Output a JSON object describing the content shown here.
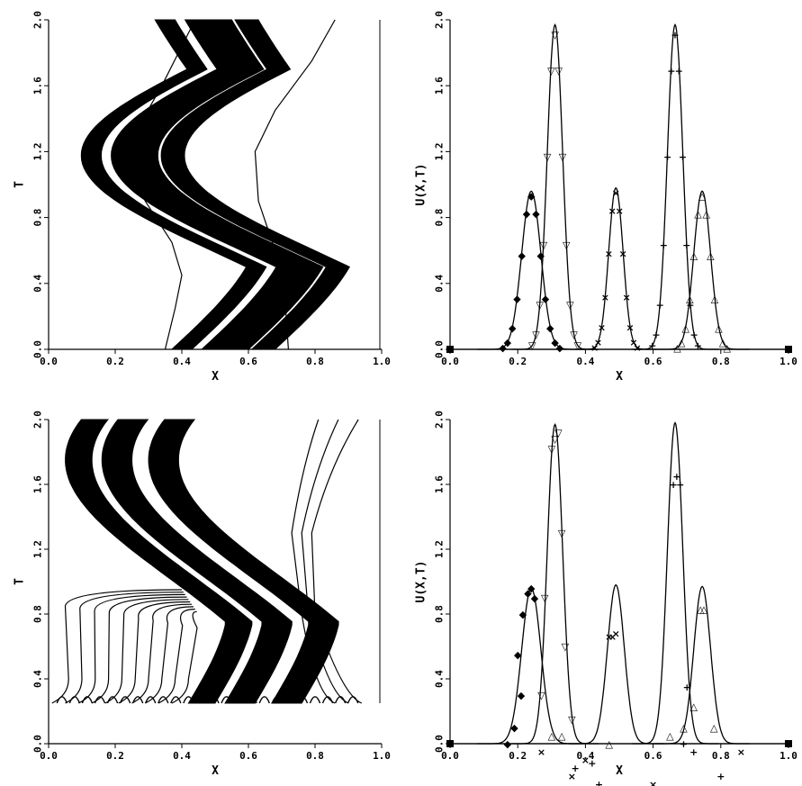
{
  "chart_data": [
    {
      "type": "line",
      "panel": "top-left",
      "xlabel": "X",
      "ylabel": "T",
      "xlim": [
        0.0,
        1.0
      ],
      "ylim": [
        0.0,
        2.0
      ],
      "xticks": [
        "0.0",
        "0.2",
        "0.4",
        "0.6",
        "0.8",
        "1.0"
      ],
      "yticks": [
        "0.0",
        "0.4",
        "0.8",
        "1.2",
        "1.6",
        "2.0"
      ],
      "bands": [
        {
          "t0": 0.0,
          "x0": 0.37,
          "width": 0.06
        },
        {
          "t0": 0.0,
          "x0": 0.46,
          "width": 0.07
        },
        {
          "t0": 0.0,
          "x0": 0.53,
          "width": 0.07
        },
        {
          "t0": 0.0,
          "x0": 0.61,
          "width": 0.07
        }
      ],
      "stray_paths": [
        {
          "x": [
            0.35,
            0.38,
            0.4,
            0.37,
            0.29,
            0.25,
            0.27,
            0.34,
            0.44
          ],
          "t": [
            0.0,
            0.25,
            0.45,
            0.65,
            0.9,
            1.15,
            1.35,
            1.6,
            2.0
          ]
        },
        {
          "x": [
            0.72,
            0.71,
            0.68,
            0.63,
            0.62,
            0.68,
            0.79,
            0.86
          ],
          "t": [
            0.0,
            0.3,
            0.6,
            0.9,
            1.2,
            1.45,
            1.75,
            2.0
          ]
        }
      ]
    },
    {
      "type": "line",
      "panel": "top-right",
      "xlabel": "X",
      "ylabel": "U(X,T)",
      "xlim": [
        0.0,
        1.0
      ],
      "ylim": [
        0.0,
        2.0
      ],
      "xticks": [
        "0.0",
        "0.2",
        "0.4",
        "0.6",
        "0.8",
        "1.0"
      ],
      "yticks": [
        "0.0",
        "0.4",
        "0.8",
        "1.2",
        "1.6",
        "2.0"
      ],
      "peaks": [
        {
          "center": 0.24,
          "height": 0.96,
          "width": 0.04
        },
        {
          "center": 0.31,
          "height": 1.97,
          "width": 0.032
        },
        {
          "center": 0.49,
          "height": 0.98,
          "width": 0.03
        },
        {
          "center": 0.665,
          "height": 1.97,
          "width": 0.032
        },
        {
          "center": 0.745,
          "height": 0.96,
          "width": 0.035
        }
      ],
      "markers": [
        "◆",
        "▽",
        "×",
        "+",
        "△"
      ]
    },
    {
      "type": "line",
      "panel": "bottom-left",
      "xlabel": "X",
      "ylabel": "T",
      "xlim": [
        0.0,
        1.0
      ],
      "ylim": [
        0.0,
        2.0
      ],
      "xticks": [
        "0.0",
        "0.2",
        "0.4",
        "0.6",
        "0.8",
        "1.0"
      ],
      "yticks": [
        "0.0",
        "0.4",
        "0.8",
        "1.2",
        "1.6",
        "2.0"
      ],
      "t_start": 0.25,
      "bands": [
        {
          "x0": 0.42,
          "width": 0.08
        },
        {
          "x0": 0.53,
          "width": 0.09
        },
        {
          "x0": 0.67,
          "width": 0.09
        }
      ],
      "fan_start_x": [
        0.04,
        0.08,
        0.12,
        0.16,
        0.2,
        0.24,
        0.28,
        0.32,
        0.36,
        0.4
      ],
      "right_paths_start_x": [
        0.86,
        0.9,
        0.94
      ]
    },
    {
      "type": "line",
      "panel": "bottom-right",
      "xlabel": "X",
      "ylabel": "U(X,T)",
      "xlim": [
        0.0,
        1.0
      ],
      "ylim": [
        0.0,
        2.0
      ],
      "xticks": [
        "0.0",
        "0.2",
        "0.4",
        "0.6",
        "0.8",
        "1.0"
      ],
      "yticks": [
        "0.0",
        "0.4",
        "0.8",
        "1.2",
        "1.6",
        "2.0"
      ],
      "peaks": [
        {
          "center": 0.24,
          "height": 0.96,
          "width": 0.04
        },
        {
          "center": 0.31,
          "height": 1.97,
          "width": 0.032
        },
        {
          "center": 0.49,
          "height": 0.98,
          "width": 0.035
        },
        {
          "center": 0.665,
          "height": 1.98,
          "width": 0.032
        },
        {
          "center": 0.745,
          "height": 0.97,
          "width": 0.035
        }
      ],
      "marker_groups": [
        {
          "symbol": "◆",
          "x": [
            0.2,
            0.215,
            0.23,
            0.24,
            0.25,
            0.21,
            0.19,
            0.17
          ],
          "y": [
            0.55,
            0.8,
            0.93,
            0.96,
            0.9,
            0.3,
            0.1,
            0.0
          ]
        },
        {
          "symbol": "▽",
          "x": [
            0.31,
            0.32,
            0.3,
            0.33,
            0.34,
            0.28,
            0.36,
            0.27
          ],
          "y": [
            1.88,
            1.92,
            1.82,
            1.3,
            0.6,
            0.9,
            0.15,
            0.3
          ]
        },
        {
          "symbol": "×",
          "x": [
            0.48,
            0.49,
            0.47,
            0.27,
            0.4,
            0.6,
            0.55,
            0.86,
            0.36
          ],
          "y": [
            0.66,
            0.68,
            0.66,
            -0.05,
            -0.1,
            -0.25,
            -0.28,
            -0.05,
            -0.2
          ]
        },
        {
          "symbol": "+",
          "x": [
            0.66,
            0.67,
            0.68,
            0.7,
            0.69,
            0.37,
            0.42,
            0.44,
            0.72,
            0.8
          ],
          "y": [
            1.6,
            1.65,
            1.6,
            0.35,
            0.0,
            -0.15,
            -0.12,
            -0.25,
            -0.05,
            -0.2
          ]
        },
        {
          "symbol": "△",
          "x": [
            0.75,
            0.74,
            0.72,
            0.69,
            0.65,
            0.78,
            0.3,
            0.33,
            0.47
          ],
          "y": [
            0.83,
            0.83,
            0.23,
            0.1,
            0.05,
            0.1,
            0.05,
            0.05,
            0.0
          ]
        }
      ]
    }
  ]
}
